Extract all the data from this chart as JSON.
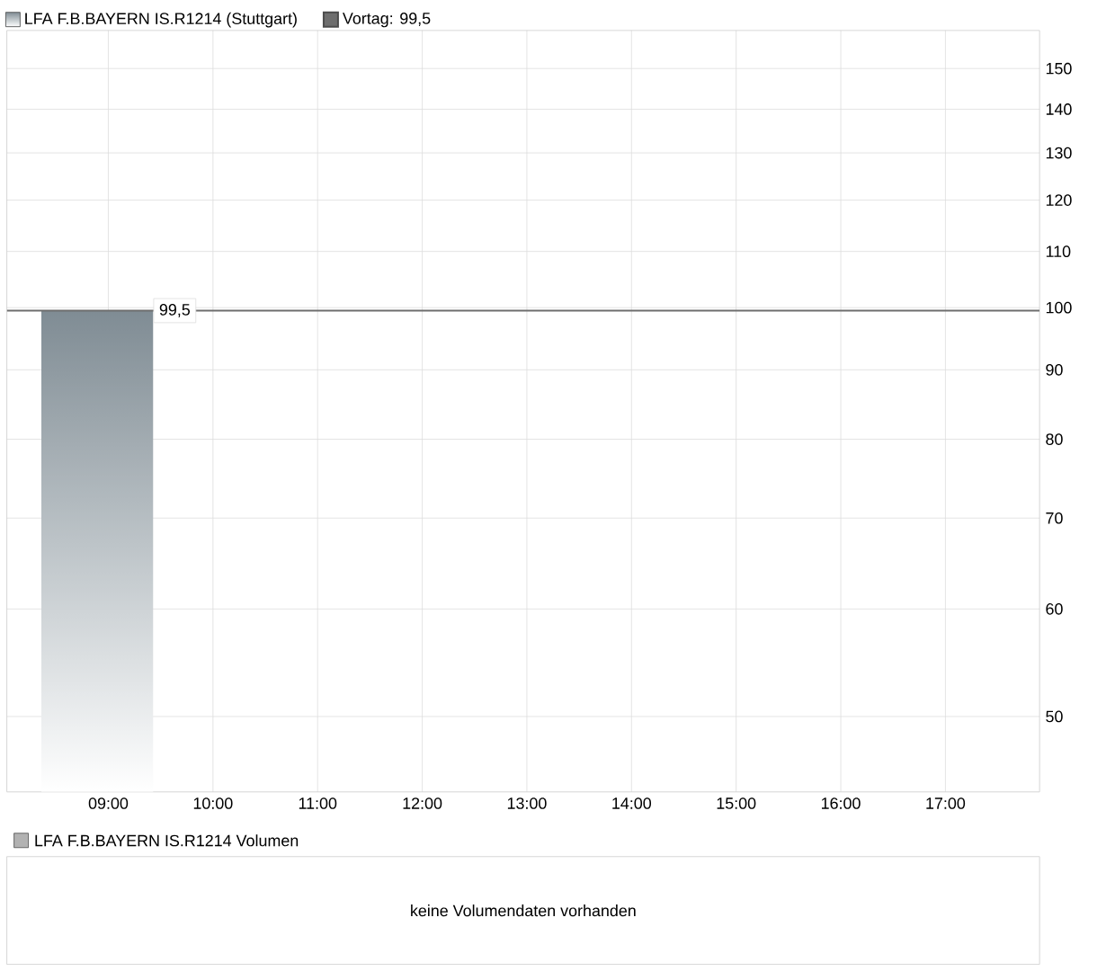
{
  "chart_data": [
    {
      "type": "area",
      "log": "y",
      "grid": true,
      "legend": "top left",
      "marker": "none",
      "xlim": [
        8.03,
        17.9
      ],
      "ylim": [
        44,
        160
      ],
      "xticks": [
        {
          "value": 9,
          "label": "09:00"
        },
        {
          "value": 10,
          "label": "10:00"
        },
        {
          "value": 11,
          "label": "11:00"
        },
        {
          "value": 12,
          "label": "12:00"
        },
        {
          "value": 13,
          "label": "13:00"
        },
        {
          "value": 14,
          "label": "14:00"
        },
        {
          "value": 15,
          "label": "15:00"
        },
        {
          "value": 16,
          "label": "16:00"
        },
        {
          "value": 17,
          "label": "17:00"
        }
      ],
      "yticks": [
        50,
        60,
        70,
        80,
        90,
        100,
        110,
        120,
        130,
        140,
        150
      ],
      "series": [
        {
          "name": "LFA F.B.BAYERN IS.R1214 (Stuttgart)",
          "color": "#7f8c94",
          "x": [
            8.36,
            9.43
          ],
          "values": [
            99.5,
            99.5
          ],
          "value_labels": [
            null,
            "99,5"
          ]
        }
      ],
      "ref_lines": [
        {
          "axis": "y",
          "value": 99.5,
          "label": "Vortag: 99,5",
          "color": "#6e6e6e"
        }
      ]
    },
    {
      "type": "other",
      "title": "LFA F.B.BAYERN IS.R1214 Volumen",
      "annotations": [
        "keine Volumendaten vorhanden"
      ]
    }
  ]
}
